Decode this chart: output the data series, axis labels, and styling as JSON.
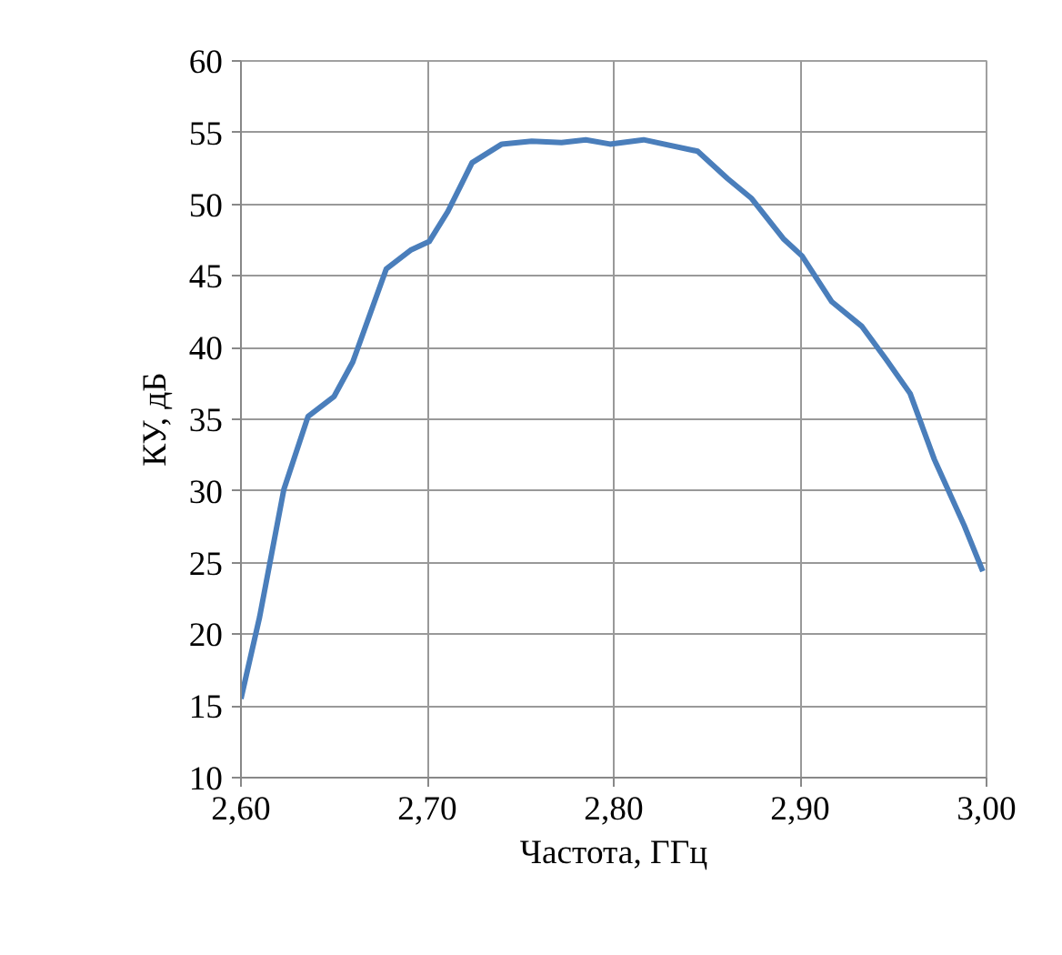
{
  "chart_data": {
    "type": "line",
    "xlabel": "Частота, ГГц",
    "ylabel": "КУ, дБ",
    "x": [
      2.6,
      2.61,
      2.623,
      2.636,
      2.65,
      2.66,
      2.678,
      2.691,
      2.701,
      2.711,
      2.724,
      2.74,
      2.756,
      2.772,
      2.785,
      2.798,
      2.816,
      2.845,
      2.861,
      2.874,
      2.891,
      2.901,
      2.917,
      2.933,
      2.946,
      2.959,
      2.972,
      2.988,
      2.998
    ],
    "series": [
      {
        "color": "#4a7ebb",
        "values": [
          15.5,
          21.2,
          30.1,
          35.2,
          36.6,
          39.0,
          45.5,
          46.8,
          47.4,
          49.5,
          52.9,
          54.2,
          54.4,
          54.3,
          54.5,
          54.2,
          54.5,
          53.7,
          51.8,
          50.4,
          47.6,
          46.4,
          43.2,
          41.5,
          39.2,
          36.8,
          32.2,
          27.6,
          24.4
        ]
      }
    ],
    "xlim": [
      2.6,
      3.0
    ],
    "ylim": [
      10,
      60
    ],
    "xticks": [
      {
        "value": 2.6,
        "label": "2,60"
      },
      {
        "value": 2.7,
        "label": "2,70"
      },
      {
        "value": 2.8,
        "label": "2,80"
      },
      {
        "value": 2.9,
        "label": "2,90"
      },
      {
        "value": 3.0,
        "label": "3,00"
      }
    ],
    "yticks": [
      10,
      15,
      20,
      25,
      30,
      35,
      40,
      45,
      50,
      55,
      60
    ],
    "grid": true,
    "marker": "none",
    "line_style": "solid"
  }
}
